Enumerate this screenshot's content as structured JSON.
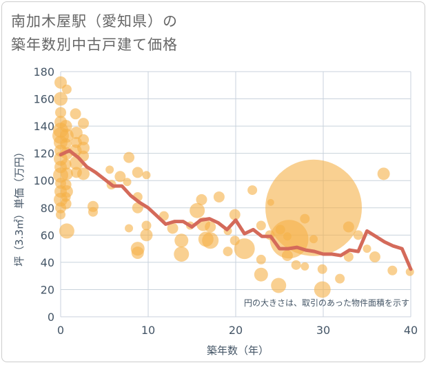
{
  "title_lines": [
    "南加木屋駅（愛知県）の",
    "築年数別中古戸建て価格"
  ],
  "chart_data": {
    "type": "scatter",
    "title": "南加木屋駅（愛知県）の築年数別中古戸建て価格",
    "xlabel": "築年数（年）",
    "ylabel": "坪（3.3㎡）単価（万円）",
    "xlim": [
      0,
      40
    ],
    "ylim": [
      0,
      180
    ],
    "xticks": [
      0,
      10,
      20,
      30,
      40
    ],
    "yticks": [
      0,
      20,
      40,
      60,
      80,
      100,
      120,
      140,
      160,
      180
    ],
    "grid": true,
    "note": "円の大きさは、取引のあった物件面積を示す",
    "colors": {
      "bubble": "#f5b048",
      "line": "#d46a5a",
      "grid": "#c8d2dc"
    },
    "bubbles": [
      {
        "x": 0,
        "y": 172,
        "s": 9
      },
      {
        "x": 0,
        "y": 160,
        "s": 10
      },
      {
        "x": 0,
        "y": 150,
        "s": 8
      },
      {
        "x": 0,
        "y": 143,
        "s": 9
      },
      {
        "x": 0,
        "y": 137,
        "s": 11
      },
      {
        "x": 0,
        "y": 133,
        "s": 12
      },
      {
        "x": 0,
        "y": 128,
        "s": 10
      },
      {
        "x": 0,
        "y": 122,
        "s": 9
      },
      {
        "x": 0,
        "y": 116,
        "s": 10
      },
      {
        "x": 0,
        "y": 110,
        "s": 9
      },
      {
        "x": 0,
        "y": 104,
        "s": 11
      },
      {
        "x": 0,
        "y": 98,
        "s": 8
      },
      {
        "x": 0,
        "y": 92,
        "s": 9
      },
      {
        "x": 0,
        "y": 86,
        "s": 10
      },
      {
        "x": 0,
        "y": 80,
        "s": 8
      },
      {
        "x": 0,
        "y": 75,
        "s": 7
      },
      {
        "x": 0.7,
        "y": 167,
        "s": 7
      },
      {
        "x": 0.6,
        "y": 140,
        "s": 9
      },
      {
        "x": 0.7,
        "y": 133,
        "s": 10
      },
      {
        "x": 0.6,
        "y": 127,
        "s": 8
      },
      {
        "x": 0.7,
        "y": 120,
        "s": 9
      },
      {
        "x": 0.6,
        "y": 112,
        "s": 8
      },
      {
        "x": 0.7,
        "y": 105,
        "s": 9
      },
      {
        "x": 0.6,
        "y": 97,
        "s": 8
      },
      {
        "x": 0.6,
        "y": 88,
        "s": 7
      },
      {
        "x": 0.6,
        "y": 83,
        "s": 8
      },
      {
        "x": 0.7,
        "y": 63,
        "s": 11
      },
      {
        "x": 0.7,
        "y": 92,
        "s": 9
      },
      {
        "x": 1.7,
        "y": 149,
        "s": 8
      },
      {
        "x": 1.8,
        "y": 135,
        "s": 9
      },
      {
        "x": 1.8,
        "y": 128,
        "s": 8
      },
      {
        "x": 1.7,
        "y": 122,
        "s": 9
      },
      {
        "x": 1.8,
        "y": 113,
        "s": 10
      },
      {
        "x": 1.8,
        "y": 106,
        "s": 8
      },
      {
        "x": 2.6,
        "y": 142,
        "s": 8
      },
      {
        "x": 2.6,
        "y": 130,
        "s": 8
      },
      {
        "x": 2.6,
        "y": 124,
        "s": 9
      },
      {
        "x": 2.6,
        "y": 118,
        "s": 8
      },
      {
        "x": 2.6,
        "y": 105,
        "s": 9
      },
      {
        "x": 3.7,
        "y": 81,
        "s": 8
      },
      {
        "x": 3.7,
        "y": 77,
        "s": 7
      },
      {
        "x": 5.6,
        "y": 108,
        "s": 6
      },
      {
        "x": 5.8,
        "y": 97,
        "s": 7
      },
      {
        "x": 6.8,
        "y": 103,
        "s": 8
      },
      {
        "x": 7.8,
        "y": 117,
        "s": 8
      },
      {
        "x": 7.6,
        "y": 99,
        "s": 6
      },
      {
        "x": 7.8,
        "y": 65,
        "s": 6
      },
      {
        "x": 8.8,
        "y": 106,
        "s": 8
      },
      {
        "x": 9.8,
        "y": 104,
        "s": 6
      },
      {
        "x": 8.8,
        "y": 88,
        "s": 7
      },
      {
        "x": 8.8,
        "y": 80,
        "s": 8
      },
      {
        "x": 8.8,
        "y": 50,
        "s": 10
      },
      {
        "x": 8.8,
        "y": 47,
        "s": 9
      },
      {
        "x": 9.8,
        "y": 67,
        "s": 7
      },
      {
        "x": 9.8,
        "y": 60,
        "s": 9
      },
      {
        "x": 11.8,
        "y": 74,
        "s": 7
      },
      {
        "x": 12.8,
        "y": 65,
        "s": 8
      },
      {
        "x": 13.8,
        "y": 56,
        "s": 10
      },
      {
        "x": 13.8,
        "y": 46,
        "s": 11
      },
      {
        "x": 14.8,
        "y": 67,
        "s": 6
      },
      {
        "x": 15.6,
        "y": 78,
        "s": 11
      },
      {
        "x": 16.1,
        "y": 86,
        "s": 8
      },
      {
        "x": 16.3,
        "y": 68,
        "s": 10
      },
      {
        "x": 16.6,
        "y": 57,
        "s": 11
      },
      {
        "x": 17.1,
        "y": 56,
        "s": 12
      },
      {
        "x": 17.1,
        "y": 66,
        "s": 8
      },
      {
        "x": 18.1,
        "y": 88,
        "s": 8
      },
      {
        "x": 19.1,
        "y": 48,
        "s": 7
      },
      {
        "x": 19.1,
        "y": 63,
        "s": 6
      },
      {
        "x": 19.9,
        "y": 75,
        "s": 8
      },
      {
        "x": 19.9,
        "y": 56,
        "s": 7
      },
      {
        "x": 21.0,
        "y": 50,
        "s": 15
      },
      {
        "x": 21.9,
        "y": 93,
        "s": 7
      },
      {
        "x": 22.9,
        "y": 67,
        "s": 7
      },
      {
        "x": 22.9,
        "y": 42,
        "s": 7
      },
      {
        "x": 22.9,
        "y": 31,
        "s": 10
      },
      {
        "x": 24.0,
        "y": 84,
        "s": 5
      },
      {
        "x": 23.9,
        "y": 60,
        "s": 7
      },
      {
        "x": 24.9,
        "y": 23,
        "s": 11
      },
      {
        "x": 25.1,
        "y": 64,
        "s": 7
      },
      {
        "x": 25.9,
        "y": 59,
        "s": 6
      },
      {
        "x": 25.9,
        "y": 45,
        "s": 8
      },
      {
        "x": 26.1,
        "y": 57,
        "s": 28
      },
      {
        "x": 26.9,
        "y": 38,
        "s": 7
      },
      {
        "x": 27.9,
        "y": 72,
        "s": 7
      },
      {
        "x": 27.9,
        "y": 37,
        "s": 6
      },
      {
        "x": 28.9,
        "y": 80,
        "s": 70
      },
      {
        "x": 28.9,
        "y": 57,
        "s": 6
      },
      {
        "x": 29.9,
        "y": 35,
        "s": 7
      },
      {
        "x": 29.9,
        "y": 20,
        "s": 12
      },
      {
        "x": 31.9,
        "y": 28,
        "s": 7
      },
      {
        "x": 32.9,
        "y": 66,
        "s": 8
      },
      {
        "x": 32.9,
        "y": 44,
        "s": 7
      },
      {
        "x": 34.0,
        "y": 60,
        "s": 7
      },
      {
        "x": 35.0,
        "y": 50,
        "s": 6
      },
      {
        "x": 35.9,
        "y": 44,
        "s": 8
      },
      {
        "x": 36.9,
        "y": 105,
        "s": 9
      },
      {
        "x": 37.9,
        "y": 34,
        "s": 7
      },
      {
        "x": 39.9,
        "y": 33,
        "s": 6
      }
    ],
    "line": {
      "x": [
        0,
        1,
        2,
        3,
        4,
        5,
        6,
        7,
        8,
        9,
        10,
        11,
        12,
        13,
        14,
        15,
        16,
        17,
        18,
        19,
        20,
        21,
        22,
        23,
        24,
        25,
        26,
        27,
        28,
        29,
        30,
        31,
        32,
        33,
        34,
        35,
        36,
        37,
        38,
        39,
        40
      ],
      "y": [
        119,
        122,
        117,
        110,
        106,
        101,
        96,
        96,
        89,
        84,
        80,
        74,
        68,
        70,
        70,
        66,
        71,
        72,
        69,
        64,
        71,
        61,
        64,
        59,
        59,
        50,
        50,
        51,
        49,
        48,
        46,
        46,
        45,
        49,
        48,
        63,
        59,
        55,
        52,
        50,
        35
      ]
    }
  }
}
